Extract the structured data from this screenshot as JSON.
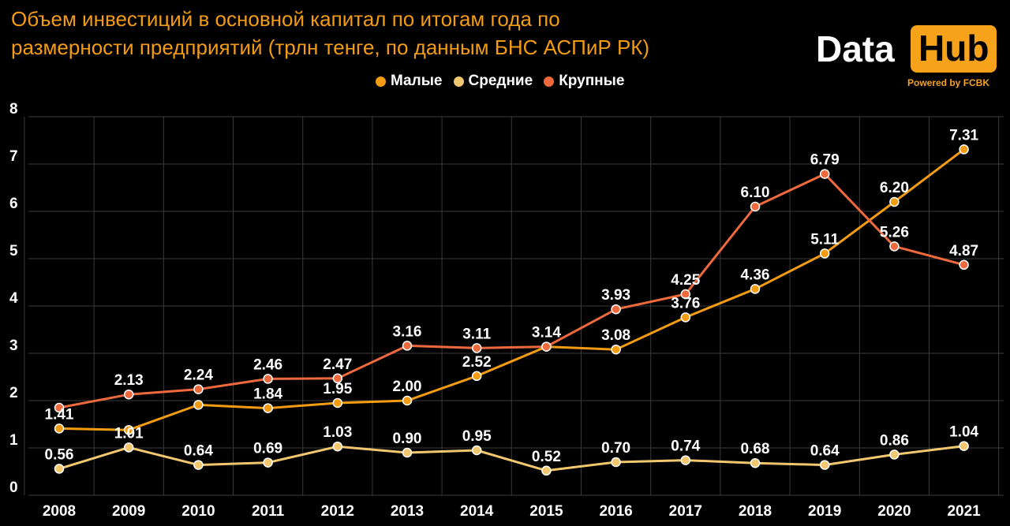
{
  "title_line1": "Объем инвестиций в основной капитал по итогам года по",
  "title_line2": "размерности предприятий (трлн тенге, по данным БНС АСПиР РК)",
  "logo": {
    "data": "Data",
    "hub": "Hub",
    "powered": "Powered by FCBK"
  },
  "colors": {
    "background": "#000000",
    "grid": "#3a3a3a",
    "title": "#f39c12",
    "logo_accent": "#f7a21b"
  },
  "chart_data": {
    "type": "line",
    "title": "Объем инвестиций в основной капитал по итогам года по размерности предприятий (трлн тенге, по данным БНС АСПиР РК)",
    "categories": [
      "2008",
      "2009",
      "2010",
      "2011",
      "2012",
      "2013",
      "2014",
      "2015",
      "2016",
      "2017",
      "2018",
      "2019",
      "2020",
      "2021"
    ],
    "ylim": [
      0,
      8
    ],
    "yticks": [
      "0",
      "1",
      "2",
      "3",
      "4",
      "5",
      "6",
      "7",
      "8"
    ],
    "grid": true,
    "legend_position": "top",
    "series": [
      {
        "name": "Малые",
        "color": "#f39c12",
        "values": [
          1.41,
          1.38,
          1.91,
          1.84,
          1.95,
          2.0,
          2.52,
          3.14,
          3.08,
          3.76,
          4.36,
          5.11,
          6.2,
          7.31
        ],
        "labels": [
          "1.41",
          "",
          "",
          "1.84",
          "1.95",
          "2.00",
          "2.52",
          "",
          "3.08",
          "3.76",
          "4.36",
          "5.11",
          "6.20",
          "7.31"
        ]
      },
      {
        "name": "Средние",
        "color": "#f2c76e",
        "values": [
          0.56,
          1.01,
          0.64,
          0.69,
          1.03,
          0.9,
          0.95,
          0.52,
          0.7,
          0.74,
          0.68,
          0.64,
          0.86,
          1.04
        ],
        "labels": [
          "0.56",
          "1.01",
          "0.64",
          "0.69",
          "1.03",
          "0.90",
          "0.95",
          "0.52",
          "0.70",
          "0.74",
          "0.68",
          "0.64",
          "0.86",
          "1.04"
        ]
      },
      {
        "name": "Крупные",
        "color": "#ee6a3c",
        "values": [
          1.85,
          2.13,
          2.24,
          2.46,
          2.47,
          3.16,
          3.11,
          3.14,
          3.93,
          4.25,
          6.1,
          6.79,
          5.26,
          4.87
        ],
        "labels": [
          "",
          "2.13",
          "2.24",
          "2.46",
          "2.47",
          "3.16",
          "3.11",
          "3.14",
          "3.93",
          "4.25",
          "6.10",
          "6.79",
          "5.26",
          "4.87"
        ]
      }
    ]
  }
}
